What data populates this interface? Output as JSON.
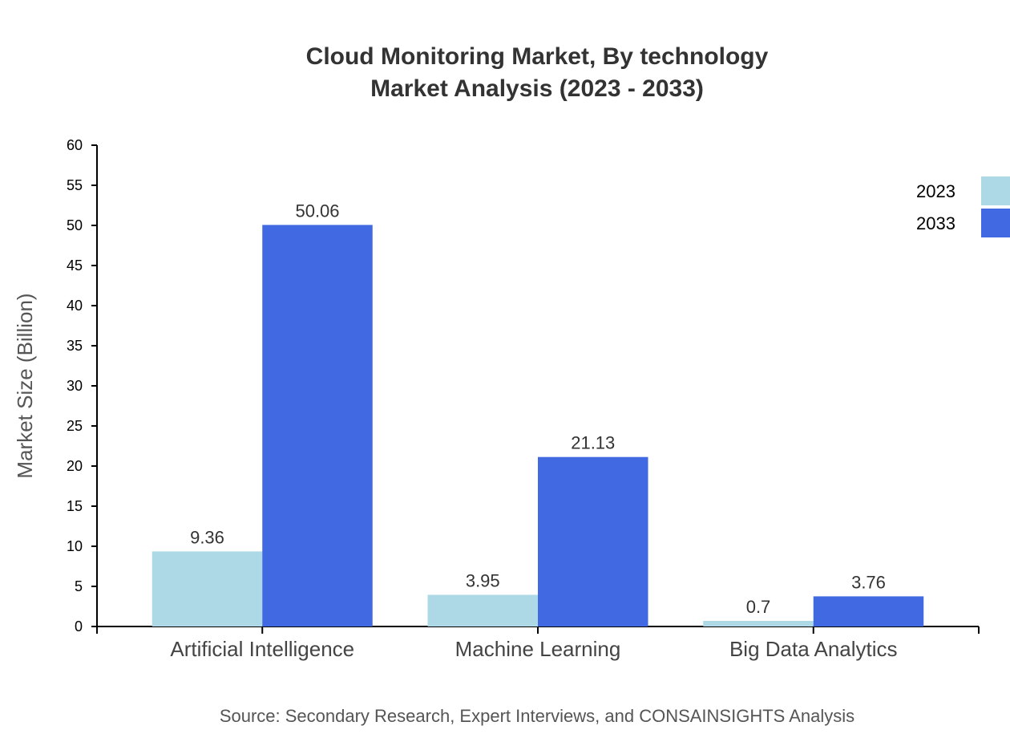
{
  "chart_data": {
    "type": "bar",
    "title": "Cloud Monitoring Market, By technology",
    "subtitle": "Market Analysis (2023 - 2033)",
    "xlabel": "",
    "ylabel": "Market Size (Billion)",
    "ylim": [
      0,
      60
    ],
    "yticks": [
      0,
      5,
      10,
      15,
      20,
      25,
      30,
      35,
      40,
      45,
      50,
      55,
      60
    ],
    "categories": [
      "Artificial Intelligence",
      "Machine Learning",
      "Big Data Analytics"
    ],
    "series": [
      {
        "name": "2023",
        "color": "#add8e6",
        "values": [
          9.36,
          3.95,
          0.7
        ]
      },
      {
        "name": "2033",
        "color": "#4169e1",
        "values": [
          50.06,
          21.13,
          3.76
        ]
      }
    ],
    "legend_position": "top-right",
    "grid": false,
    "source": "Source: Secondary Research, Expert Interviews, and CONSAINSIGHTS Analysis"
  }
}
